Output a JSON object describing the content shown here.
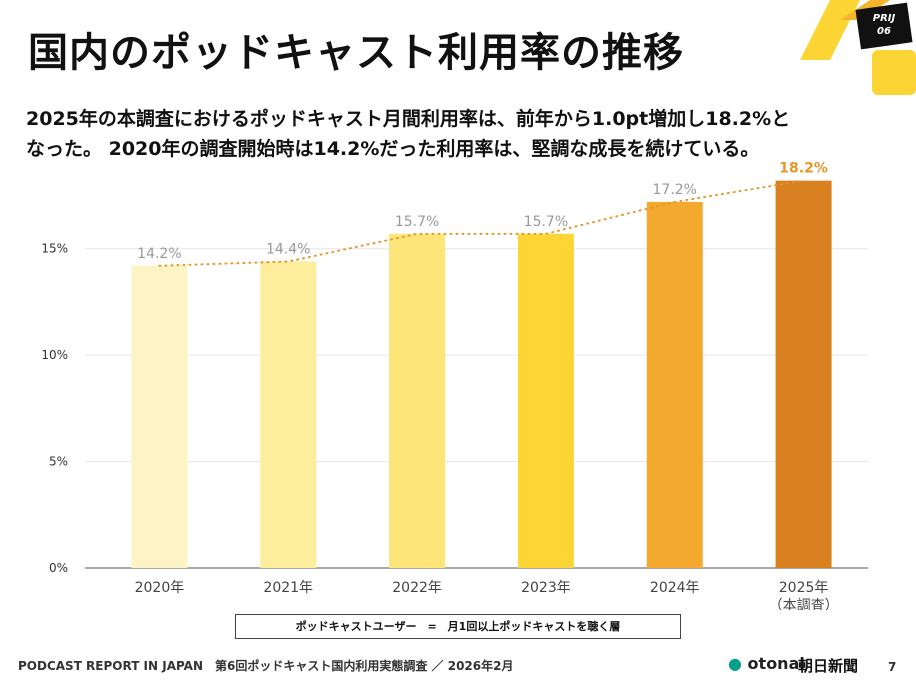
{
  "chart_data": {
    "type": "bar",
    "title": "国内のポッドキャスト利用率の推移",
    "subtitle": [
      "2025年の本調査におけるポッドキャスト月間利用率は、前年から1.0pt増加し18.2%と",
      "なった。 2020年の調査開始時は14.2%だった利用率は、堅調な成長を続けている。"
    ],
    "categories": [
      "2020年",
      "2021年",
      "2022年",
      "2023年",
      "2024年",
      "2025年\n（本調査）"
    ],
    "values": [
      14.2,
      14.4,
      15.7,
      15.7,
      17.2,
      18.2
    ],
    "value_labels": [
      "14.2%",
      "14.4%",
      "15.7%",
      "15.7%",
      "17.2%",
      "18.2%"
    ],
    "colors": [
      "#fdf4c6",
      "#fdee9e",
      "#fde57a",
      "#fdd535",
      "#f2a92e",
      "#d98121"
    ],
    "trend_color": "#e8962a",
    "ylim": [
      0,
      18.7
    ],
    "yticks": [
      {
        "value": 0,
        "label": "0%"
      },
      {
        "value": 5,
        "label": "5%"
      },
      {
        "value": 10,
        "label": "10%"
      },
      {
        "value": 15,
        "label": "15%"
      }
    ],
    "grid": true,
    "note": "ポッドキャストユーザー　=　月1回以上ポッドキャストを聴く層"
  },
  "badge": [
    "PRIJ",
    "06"
  ],
  "footer": "PODCAST REPORT IN JAPAN　第6回ポッドキャスト国内利用実態調査 ／ 2026年2月",
  "logos": [
    "otonal",
    "朝日新聞"
  ],
  "page": "7"
}
